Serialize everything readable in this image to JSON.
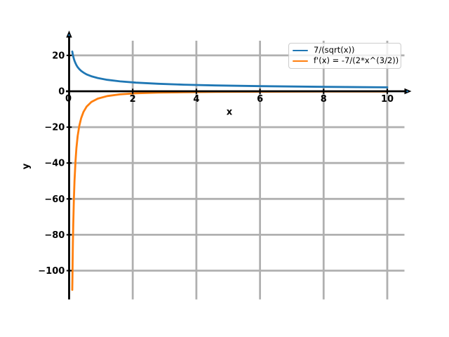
{
  "figure": {
    "background": "#ffffff"
  },
  "chart_data": {
    "type": "line",
    "title": "",
    "xlabel": "x",
    "ylabel": "y",
    "xlim": [
      -0.4,
      10.6
    ],
    "ylim": [
      -116,
      28
    ],
    "x_ticks": [
      0,
      2,
      4,
      6,
      8,
      10
    ],
    "y_ticks": [
      20,
      0,
      -20,
      -40,
      -60,
      -80,
      -100
    ],
    "grid": true,
    "legend": {
      "position": "upper right",
      "entries": [
        "7/(sqrt(x))",
        "f'(x) = -7/(2*x^(3/2))"
      ]
    },
    "series": [
      {
        "name": "7/(sqrt(x))",
        "color": "#1f77b4",
        "points": [
          [
            0.1,
            22.14
          ],
          [
            0.105,
            21.6
          ],
          [
            0.11,
            21.11
          ],
          [
            0.12,
            20.21
          ],
          [
            0.13,
            19.42
          ],
          [
            0.15,
            18.07
          ],
          [
            0.17,
            16.98
          ],
          [
            0.2,
            15.65
          ],
          [
            0.23,
            14.6
          ],
          [
            0.27,
            13.47
          ],
          [
            0.32,
            12.37
          ],
          [
            0.38,
            11.36
          ],
          [
            0.45,
            10.44
          ],
          [
            0.55,
            9.44
          ],
          [
            0.7,
            8.37
          ],
          [
            0.9,
            7.38
          ],
          [
            1.2,
            6.39
          ],
          [
            1.6,
            5.53
          ],
          [
            2.1,
            4.83
          ],
          [
            2.8,
            4.18
          ],
          [
            3.6,
            3.69
          ],
          [
            4.6,
            3.26
          ],
          [
            6,
            2.86
          ],
          [
            8,
            2.47
          ],
          [
            10,
            2.21
          ]
        ]
      },
      {
        "name": "f'(x) = -7/(2*x^(3/2))",
        "color": "#ff7f0e",
        "points": [
          [
            0.1,
            -110.68
          ],
          [
            0.105,
            -102.86
          ],
          [
            0.11,
            -95.94
          ],
          [
            0.12,
            -84.2
          ],
          [
            0.13,
            -74.68
          ],
          [
            0.15,
            -60.25
          ],
          [
            0.17,
            -49.94
          ],
          [
            0.2,
            -39.13
          ],
          [
            0.23,
            -31.73
          ],
          [
            0.27,
            -24.95
          ],
          [
            0.32,
            -19.34
          ],
          [
            0.38,
            -14.94
          ],
          [
            0.45,
            -11.6
          ],
          [
            0.55,
            -8.58
          ],
          [
            0.7,
            -5.98
          ],
          [
            0.9,
            -4.1
          ],
          [
            1.2,
            -2.66
          ],
          [
            1.6,
            -1.73
          ],
          [
            2.1,
            -1.15
          ],
          [
            2.8,
            -0.75
          ],
          [
            3.6,
            -0.51
          ],
          [
            4.6,
            -0.36
          ],
          [
            6,
            -0.24
          ],
          [
            8,
            -0.15
          ],
          [
            10,
            -0.11
          ]
        ]
      }
    ]
  },
  "styles": {
    "grid_color": "#b0b0b0",
    "axis_color": "#000000",
    "tick_label_color": "#000000",
    "legend_border": "#cccccc"
  }
}
